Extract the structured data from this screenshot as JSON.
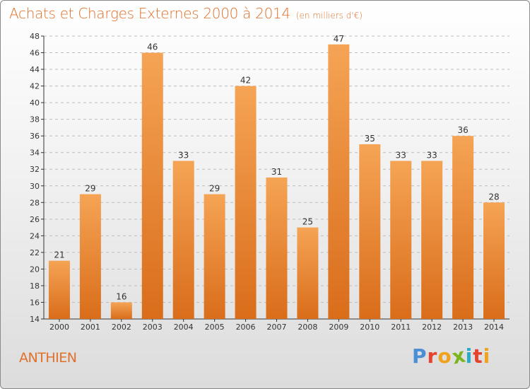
{
  "header": {
    "title": "Achats et Charges Externes 2000 à 2014",
    "unit": "(en milliers d'€)"
  },
  "footer": {
    "town": "ANTHIEN",
    "logo_text": "Proxiti"
  },
  "colors": {
    "bar_light": "#f5a455",
    "bar_dark": "#d96d1a",
    "title": "#e0702a",
    "grid": "#bdbdbd"
  },
  "chart_data": {
    "type": "bar",
    "title": "Achats et Charges Externes 2000 à 2014",
    "subtitle": "(en milliers d'€)",
    "xlabel": "",
    "ylabel": "",
    "categories": [
      "2000",
      "2001",
      "2002",
      "2003",
      "2004",
      "2005",
      "2006",
      "2007",
      "2008",
      "2009",
      "2010",
      "2011",
      "2012",
      "2013",
      "2014"
    ],
    "values": [
      21,
      29,
      16,
      46,
      33,
      29,
      42,
      31,
      25,
      47,
      35,
      33,
      33,
      36,
      28
    ],
    "ylim": [
      14,
      48
    ],
    "yticks": [
      14,
      16,
      18,
      20,
      22,
      24,
      26,
      28,
      30,
      32,
      34,
      36,
      38,
      40,
      42,
      44,
      46,
      48
    ],
    "grid": true,
    "data_labels": true,
    "legend": "none"
  }
}
